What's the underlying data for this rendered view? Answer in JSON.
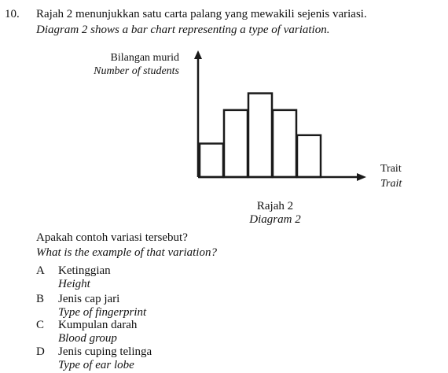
{
  "question": {
    "number": "10.",
    "text_ms": "Rajah 2 menunjukkan satu carta palang yang mewakili sejenis variasi.",
    "text_en": "Diagram 2 shows a bar chart representing a type of variation."
  },
  "chart_data": {
    "type": "bar",
    "ylabel_ms": "Bilangan murid",
    "ylabel_en": "Number of students",
    "xlabel_ms": "Trait",
    "xlabel_en": "Trait",
    "values": [
      4,
      8,
      10,
      8,
      5
    ],
    "ylim": [
      0,
      14
    ],
    "grid": false,
    "bar_fill": "#ffffff",
    "stroke": "#1a1a1a"
  },
  "caption": {
    "ms": "Rajah 2",
    "en": "Diagram 2"
  },
  "prompt": {
    "ms": "Apakah contoh variasi tersebut?",
    "en": "What is the example of that variation?"
  },
  "options": [
    {
      "letter": "A",
      "ms": "Ketinggian",
      "en": "Height"
    },
    {
      "letter": "B",
      "ms": "Jenis cap jari",
      "en": "Type of fingerprint"
    },
    {
      "letter": "C",
      "ms": "Kumpulan darah",
      "en": "Blood group"
    },
    {
      "letter": "D",
      "ms": "Jenis cuping telinga",
      "en": "Type of ear lobe"
    }
  ]
}
